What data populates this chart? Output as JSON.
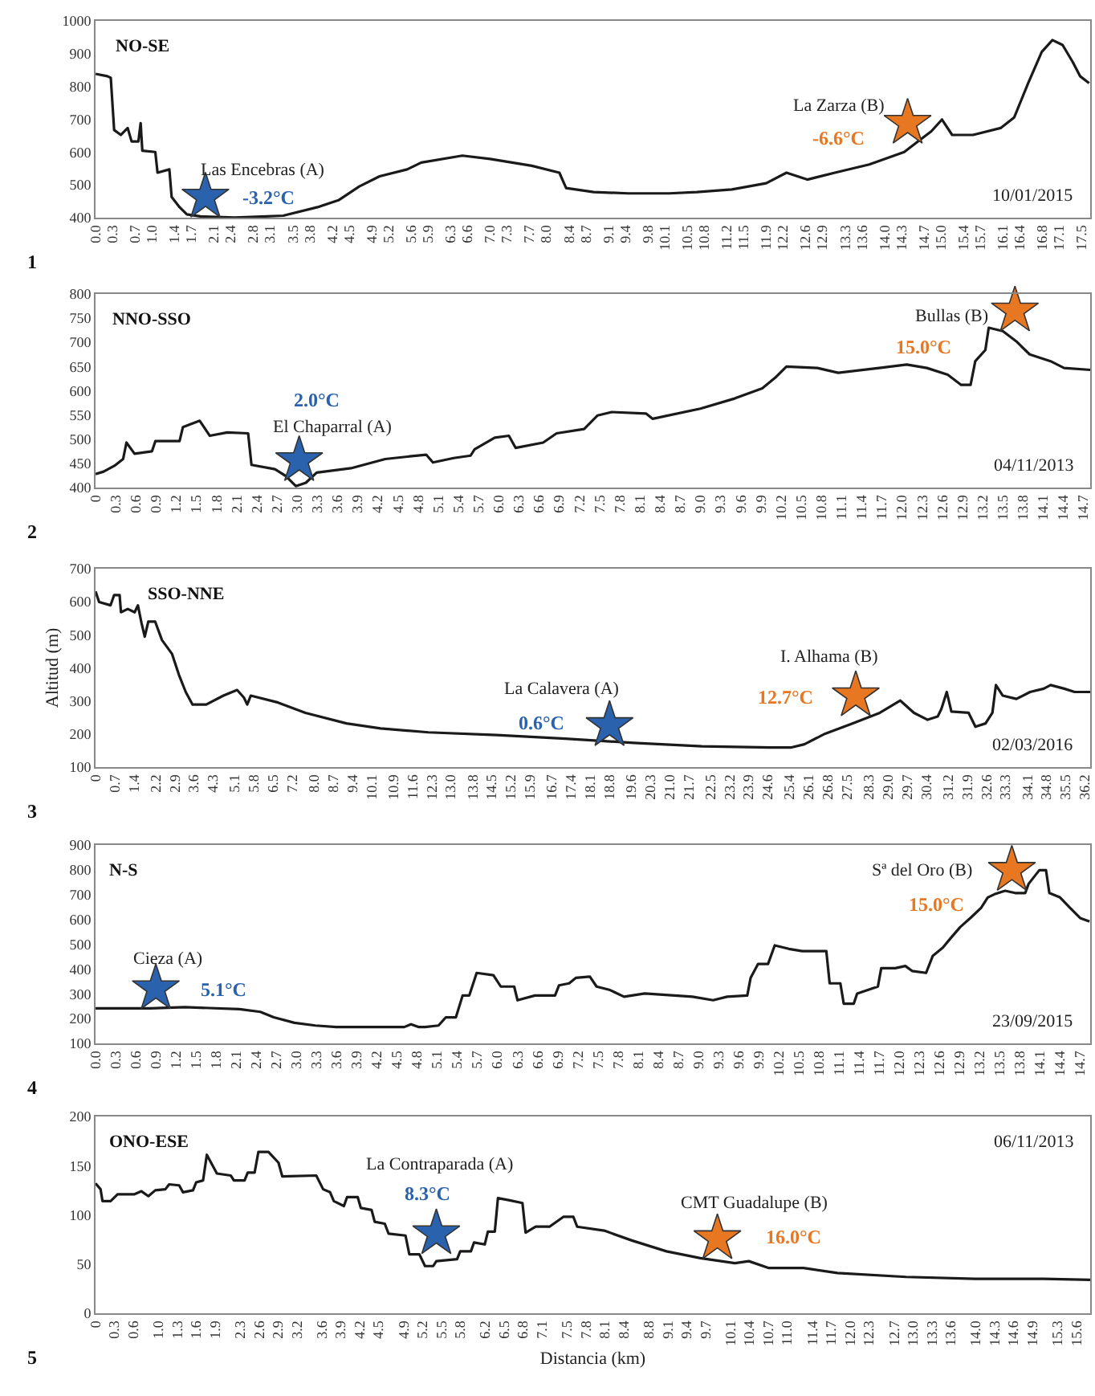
{
  "chart_data": [
    {
      "type": "line",
      "title": "NO-SE",
      "xlim": [
        0,
        17.65
      ],
      "ylim": [
        400,
        1000
      ],
      "yticks": [
        400,
        500,
        600,
        700,
        800,
        900,
        1000
      ],
      "xticks": [
        {
          "value": 0,
          "label": "0.0"
        },
        0.3,
        0.7,
        {
          "value": 1,
          "label": "1.0"
        },
        1.4,
        1.7,
        2.1,
        2.4,
        2.8,
        3.1,
        3.5,
        3.8,
        4.2,
        4.5,
        4.9,
        5.2,
        5.6,
        5.9,
        6.3,
        6.6,
        {
          "value": 7,
          "label": "7.0"
        },
        7.3,
        7.7,
        {
          "value": 8,
          "label": "8.0"
        },
        8.4,
        8.7,
        9.1,
        9.4,
        9.8,
        10.1,
        10.5,
        10.8,
        11.2,
        11.5,
        11.9,
        12.2,
        12.6,
        12.9,
        13.3,
        13.6,
        {
          "value": 14,
          "label": "14.0"
        },
        14.3,
        14.7,
        {
          "value": 15,
          "label": "15.0"
        },
        15.4,
        15.7,
        16.1,
        16.4,
        16.8,
        17.1,
        17.5
      ],
      "x": [
        0,
        0.21,
        0.27,
        0.33,
        0.45,
        0.57,
        0.64,
        0.76,
        0.8,
        0.83,
        1.06,
        1.1,
        1.31,
        1.35,
        1.49,
        1.62,
        1.86,
        2.47,
        3.33,
        3.94,
        4.31,
        4.68,
        5.04,
        5.53,
        5.78,
        6.51,
        7.0,
        7.74,
        8.23,
        8.35,
        8.84,
        9.45,
        10.18,
        10.67,
        11.29,
        11.9,
        12.26,
        12.63,
        13.12,
        13.73,
        14.35,
        14.59,
        14.83,
        15.02,
        15.2,
        15.57,
        16.06,
        16.3,
        16.55,
        16.79,
        16.98,
        17.16,
        17.34,
        17.47,
        17.63
      ],
      "series": [
        {
          "color": "#1a1a1a",
          "values": [
            838,
            831,
            826,
            667,
            652,
            673,
            632,
            632,
            688,
            604,
            600,
            537,
            547,
            463,
            432,
            410,
            404,
            400,
            406,
            432,
            453,
            495,
            526,
            547,
            568,
            589,
            579,
            558,
            537,
            490,
            478,
            474,
            474,
            478,
            486,
            505,
            537,
            516,
            537,
            562,
            600,
            632,
            663,
            699,
            652,
            652,
            673,
            705,
            810,
            905,
            941,
            926,
            874,
            831,
            810
          ]
        },
        {
          "type": "scatter",
          "marker": "star",
          "color": "#2a62ad",
          "x": [
            1.95
          ],
          "values": [
            463
          ]
        },
        {
          "type": "scatter",
          "marker": "star",
          "color": "#e87722",
          "x": [
            14.41
          ],
          "values": [
            688
          ]
        }
      ],
      "annotations": [
        "1",
        "10/01/2015",
        "Las Encebras (A)",
        "-3.2°C",
        "La Zarza (B)",
        "-6.6°C"
      ]
    },
    {
      "type": "line",
      "title": "NNO-SSO",
      "xlim": [
        0,
        14.8
      ],
      "ylim": [
        400,
        800
      ],
      "yticks": [
        400,
        450,
        500,
        550,
        600,
        650,
        700,
        750,
        800
      ],
      "xticks": [
        0,
        0.3,
        0.6,
        0.9,
        1.2,
        1.5,
        1.8,
        2.1,
        2.4,
        2.7,
        {
          "value": 3,
          "label": "3.0"
        },
        3.3,
        3.6,
        3.9,
        4.2,
        4.5,
        4.8,
        5.1,
        5.4,
        5.7,
        {
          "value": 6,
          "label": "6.0"
        },
        6.3,
        6.6,
        6.9,
        7.2,
        7.5,
        7.8,
        8.1,
        8.4,
        8.7,
        {
          "value": 9,
          "label": "9.0"
        },
        9.3,
        9.6,
        9.9,
        10.2,
        10.5,
        10.8,
        11.1,
        11.4,
        11.7,
        {
          "value": 12,
          "label": "12.0"
        },
        12.3,
        12.6,
        12.9,
        13.2,
        13.5,
        13.8,
        14.1,
        14.4,
        14.7
      ],
      "x": [
        0,
        0.12,
        0.28,
        0.41,
        0.46,
        0.58,
        0.84,
        0.89,
        1.25,
        1.3,
        1.55,
        1.7,
        1.96,
        2.27,
        2.32,
        2.67,
        2.83,
        2.98,
        3.13,
        3.29,
        3.8,
        4.31,
        4.92,
        5.02,
        5.33,
        5.58,
        5.64,
        5.94,
        6.15,
        6.25,
        6.66,
        6.86,
        7.27,
        7.47,
        7.68,
        8.19,
        8.29,
        9.0,
        9.51,
        9.92,
        10.13,
        10.28,
        10.74,
        11.05,
        11.66,
        12.07,
        12.37,
        12.68,
        12.88,
        13.02,
        13.09,
        13.24,
        13.29,
        13.5,
        13.7,
        13.9,
        14.21,
        14.41,
        14.8
      ],
      "series": [
        {
          "color": "#1a1a1a",
          "values": [
            428,
            433,
            445,
            459,
            493,
            470,
            475,
            496,
            496,
            525,
            538,
            507,
            514,
            512,
            447,
            438,
            424,
            403,
            410,
            431,
            440,
            459,
            468,
            452,
            461,
            466,
            479,
            503,
            507,
            482,
            493,
            512,
            521,
            549,
            556,
            553,
            542,
            563,
            584,
            605,
            629,
            650,
            647,
            637,
            647,
            654,
            647,
            633,
            612,
            612,
            661,
            684,
            730,
            723,
            702,
            675,
            661,
            647,
            643
          ]
        },
        {
          "type": "scatter",
          "marker": "star",
          "color": "#2a62ad",
          "x": [
            3.03
          ],
          "values": [
            456
          ]
        },
        {
          "type": "scatter",
          "marker": "star",
          "color": "#e87722",
          "x": [
            13.68
          ],
          "values": [
            765
          ]
        }
      ],
      "annotations": [
        "2",
        "04/11/2013",
        "El Chaparral (A)",
        "2.0°C",
        "Bullas (B)",
        "15.0°C"
      ]
    },
    {
      "type": "line",
      "title": "SSO-NNE",
      "ylabel": "Altitud (m)",
      "xlim": [
        0,
        36.4
      ],
      "ylim": [
        100,
        700
      ],
      "yticks": [
        100,
        200,
        300,
        400,
        500,
        600,
        700
      ],
      "xticks": [
        0,
        0.7,
        1.4,
        2.2,
        2.9,
        3.6,
        4.3,
        5.1,
        5.8,
        6.5,
        7.2,
        {
          "value": 8,
          "label": "8.0"
        },
        8.7,
        9.4,
        10.1,
        10.9,
        11.6,
        12.3,
        {
          "value": 13,
          "label": "13.0"
        },
        13.8,
        14.5,
        15.2,
        15.9,
        16.7,
        17.4,
        18.1,
        18.8,
        19.6,
        20.3,
        {
          "value": 21,
          "label": "21.0"
        },
        21.7,
        22.5,
        23.2,
        23.9,
        24.6,
        25.4,
        26.1,
        26.8,
        27.5,
        28.3,
        {
          "value": 29,
          "label": "29.0"
        },
        29.7,
        30.4,
        31.2,
        31.9,
        32.6,
        33.3,
        34.1,
        34.8,
        35.5,
        36.2
      ],
      "x": [
        0,
        0.13,
        0.55,
        0.68,
        0.88,
        0.93,
        1.18,
        1.43,
        1.55,
        1.68,
        1.8,
        1.93,
        2.18,
        2.43,
        2.8,
        3.05,
        3.3,
        3.55,
        4.05,
        4.68,
        5.18,
        5.43,
        5.55,
        5.68,
        6.68,
        7.68,
        9.18,
        10.43,
        12.18,
        14.69,
        17.19,
        19.69,
        22.19,
        24.69,
        25.44,
        25.94,
        26.7,
        27.7,
        28.7,
        29.45,
        29.95,
        30.45,
        30.82,
        30.95,
        31.15,
        31.32,
        31.95,
        32.2,
        32.57,
        32.82,
        32.95,
        33.2,
        33.7,
        34.2,
        34.7,
        34.95,
        35.45,
        35.83,
        36.4
      ],
      "series": [
        {
          "color": "#1a1a1a",
          "values": [
            631,
            599,
            589,
            620,
            620,
            568,
            578,
            568,
            589,
            536,
            494,
            540,
            540,
            484,
            442,
            379,
            327,
            289,
            289,
            316,
            333,
            310,
            289,
            316,
            295,
            264,
            232,
            217,
            205,
            197,
            186,
            173,
            163,
            159,
            159,
            169,
            201,
            232,
            264,
            301,
            264,
            243,
            253,
            275,
            327,
            268,
            264,
            222,
            232,
            264,
            348,
            316,
            306,
            327,
            337,
            348,
            337,
            327,
            327
          ]
        },
        {
          "type": "scatter",
          "marker": "star",
          "color": "#2a62ad",
          "x": [
            18.81
          ],
          "values": [
            226
          ]
        },
        {
          "type": "scatter",
          "marker": "star",
          "color": "#e87722",
          "x": [
            27.82
          ],
          "values": [
            316
          ]
        }
      ],
      "annotations": [
        "3",
        "02/03/2016",
        "La Calavera (A)",
        "0.6°C",
        "I. Alhama (B)",
        "12.7°C"
      ]
    },
    {
      "type": "line",
      "title": "N-S",
      "xlim": [
        0,
        14.85
      ],
      "ylim": [
        100,
        900
      ],
      "yticks": [
        100,
        200,
        300,
        400,
        500,
        600,
        700,
        800,
        900
      ],
      "xticks": [
        {
          "value": 0,
          "label": "0.0"
        },
        0.3,
        0.6,
        0.9,
        1.2,
        1.5,
        1.8,
        2.1,
        2.4,
        2.7,
        {
          "value": 3,
          "label": "3.0"
        },
        3.3,
        3.6,
        3.9,
        4.2,
        4.5,
        4.8,
        5.1,
        5.4,
        5.7,
        {
          "value": 6,
          "label": "6.0"
        },
        6.3,
        6.6,
        6.9,
        7.2,
        7.5,
        7.8,
        8.1,
        8.4,
        8.7,
        {
          "value": 9,
          "label": "9.0"
        },
        9.3,
        9.6,
        9.9,
        10.2,
        10.5,
        10.8,
        11.1,
        11.4,
        11.7,
        {
          "value": 12,
          "label": "12.0"
        },
        12.3,
        12.6,
        12.9,
        13.2,
        13.5,
        13.8,
        14.1,
        14.4,
        14.7
      ],
      "x": [
        0,
        0.82,
        1.33,
        2.15,
        2.46,
        2.66,
        2.97,
        3.28,
        3.59,
        4.61,
        4.71,
        4.82,
        4.92,
        5.12,
        5.23,
        5.38,
        5.48,
        5.58,
        5.69,
        5.94,
        6.05,
        6.25,
        6.3,
        6.56,
        6.86,
        6.92,
        7.07,
        7.17,
        7.38,
        7.48,
        7.68,
        7.89,
        8.2,
        8.91,
        9.22,
        9.43,
        9.73,
        9.78,
        9.89,
        10.04,
        10.14,
        10.35,
        10.55,
        10.76,
        10.91,
        10.96,
        11.12,
        11.17,
        11.32,
        11.37,
        11.68,
        11.73,
        11.94,
        12.09,
        12.19,
        12.4,
        12.5,
        12.65,
        12.76,
        12.91,
        13.06,
        13.22,
        13.32,
        13.42,
        13.58,
        13.73,
        13.88,
        13.93,
        14.09,
        14.19,
        14.24,
        14.4,
        14.55,
        14.7,
        14.84
      ],
      "series": [
        {
          "color": "#1a1a1a",
          "values": [
            241,
            241,
            246,
            238,
            227,
            205,
            183,
            172,
            166,
            166,
            177,
            166,
            166,
            172,
            205,
            205,
            293,
            293,
            384,
            375,
            329,
            329,
            274,
            293,
            293,
            334,
            342,
            364,
            369,
            329,
            315,
            288,
            301,
            288,
            274,
            288,
            293,
            364,
            420,
            420,
            495,
            481,
            472,
            472,
            472,
            342,
            342,
            260,
            260,
            301,
            329,
            403,
            403,
            412,
            392,
            384,
            453,
            486,
            522,
            569,
            605,
            646,
            688,
            701,
            715,
            706,
            706,
            743,
            798,
            798,
            706,
            688,
            646,
            605,
            591
          ]
        },
        {
          "type": "scatter",
          "marker": "star",
          "color": "#2a62ad",
          "x": [
            0.9
          ],
          "values": [
            321
          ]
        },
        {
          "type": "scatter",
          "marker": "star",
          "color": "#e87722",
          "x": [
            13.68
          ],
          "values": [
            798
          ]
        }
      ],
      "annotations": [
        "4",
        "23/09/2015",
        "Cieza (A)",
        "5.1°C",
        "Sª del Oro (B)",
        "15.0°C"
      ]
    },
    {
      "type": "line",
      "title": "ONO-ESE",
      "xlabel": "Distancia (km)",
      "xlim": [
        0,
        15.82
      ],
      "ylim": [
        0,
        200
      ],
      "yticks": [
        0,
        50,
        100,
        150,
        200
      ],
      "xticks": [
        0,
        0.3,
        0.6,
        {
          "value": 1,
          "label": "1.0"
        },
        1.3,
        1.6,
        1.9,
        2.3,
        2.6,
        2.9,
        3.2,
        3.6,
        3.9,
        4.2,
        4.5,
        4.9,
        5.2,
        5.5,
        5.8,
        6.2,
        6.5,
        6.8,
        7.1,
        7.5,
        7.8,
        8.1,
        8.4,
        8.8,
        9.1,
        9.4,
        9.7,
        10.1,
        10.4,
        10.7,
        {
          "value": 11,
          "label": "11.0"
        },
        11.4,
        11.7,
        {
          "value": 12,
          "label": "12.0"
        },
        12.3,
        12.7,
        {
          "value": 13,
          "label": "13.0"
        },
        13.3,
        13.6,
        {
          "value": 14,
          "label": "14.0"
        },
        14.3,
        14.6,
        14.9,
        15.3,
        15.6
      ],
      "x": [
        0,
        0.08,
        0.11,
        0.24,
        0.35,
        0.62,
        0.73,
        0.84,
        0.95,
        1.11,
        1.17,
        1.33,
        1.39,
        1.55,
        1.6,
        1.71,
        1.77,
        1.93,
        2.15,
        2.2,
        2.37,
        2.42,
        2.53,
        2.59,
        2.75,
        2.91,
        2.97,
        3.51,
        3.62,
        3.73,
        3.79,
        3.95,
        4.0,
        4.17,
        4.22,
        4.39,
        4.44,
        4.6,
        4.66,
        4.93,
        4.99,
        5.15,
        5.24,
        5.37,
        5.42,
        5.75,
        5.8,
        5.97,
        6.02,
        6.19,
        6.24,
        6.35,
        6.4,
        6.57,
        6.79,
        6.84,
        7.0,
        7.22,
        7.44,
        7.6,
        7.66,
        8.09,
        8.53,
        9.08,
        9.62,
        10.17,
        10.39,
        10.71,
        11.26,
        11.8,
        12.89,
        13.99,
        15.08,
        15.82
      ],
      "series": [
        {
          "color": "#1a1a1a",
          "values": [
            132,
            126,
            114,
            114,
            121,
            121,
            124,
            119,
            125,
            126,
            131,
            130,
            123,
            125,
            133,
            135,
            161,
            142,
            140,
            135,
            135,
            143,
            143,
            164,
            164,
            153,
            139,
            140,
            126,
            123,
            114,
            109,
            118,
            118,
            107,
            105,
            93,
            91,
            81,
            79,
            60,
            60,
            48,
            48,
            53,
            55,
            63,
            63,
            72,
            70,
            83,
            83,
            117,
            115,
            112,
            82,
            88,
            88,
            98,
            98,
            88,
            84,
            74,
            63,
            56,
            51,
            53,
            46,
            46,
            41,
            37,
            35,
            35,
            34
          ]
        },
        {
          "type": "scatter",
          "marker": "star",
          "color": "#2a62ad",
          "x": [
            5.42
          ],
          "values": [
            81
          ]
        },
        {
          "type": "scatter",
          "marker": "star",
          "color": "#e87722",
          "x": [
            9.89
          ],
          "values": [
            76
          ]
        }
      ],
      "annotations": [
        "5",
        "06/11/2013",
        "La Contraparada (A)",
        "8.3°C",
        "CMT Guadalupe (B)",
        "16.0°C"
      ]
    }
  ]
}
